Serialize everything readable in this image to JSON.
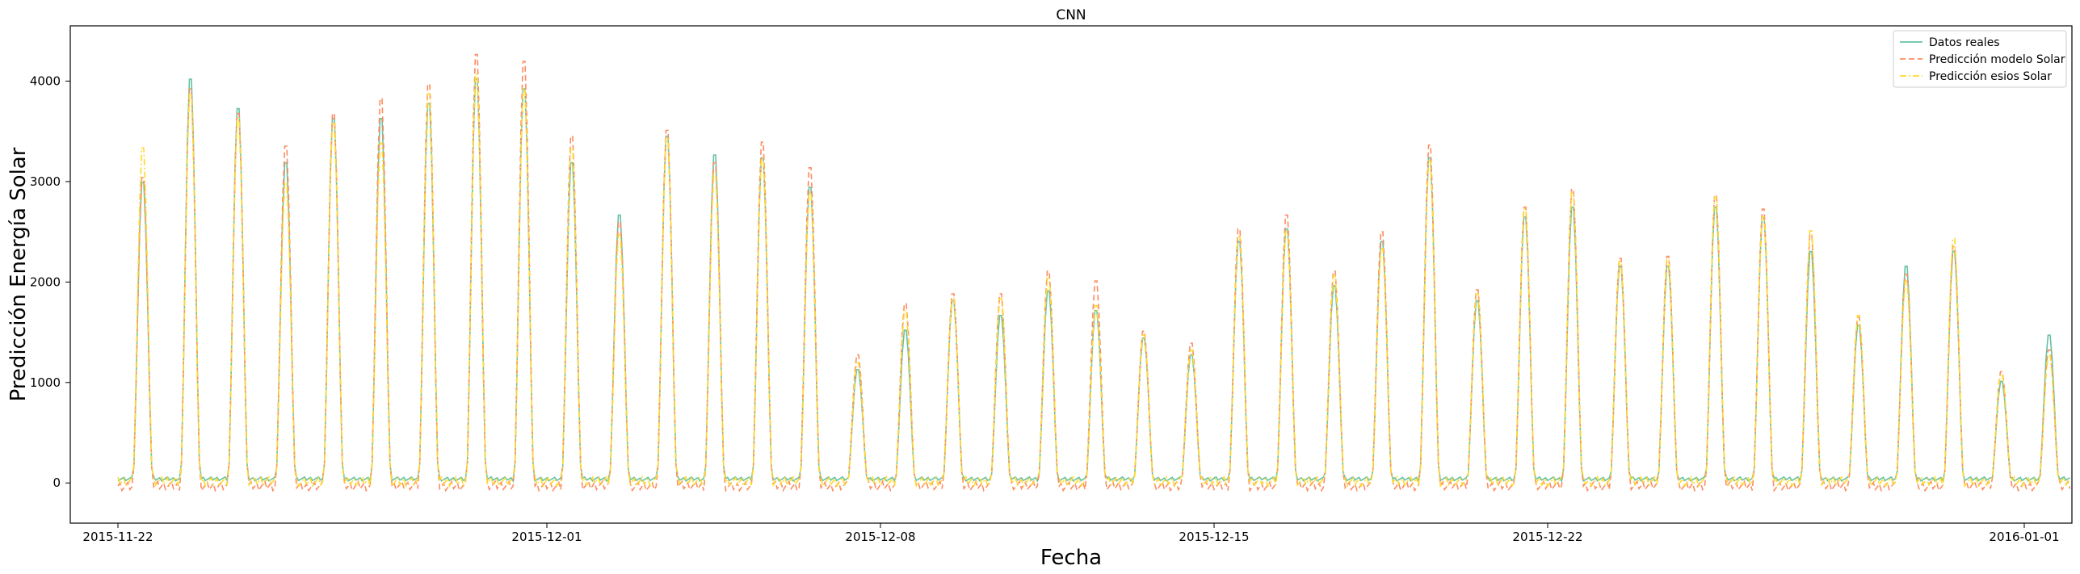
{
  "chart_data": {
    "type": "line",
    "title": "CNN",
    "xlabel": "Fecha",
    "ylabel": "Predicción Energía Solar",
    "x_start": "2015-11-22",
    "x_end": "2016-01-02",
    "xlim": [
      "2015-11-21",
      "2016-01-02"
    ],
    "ylim": [
      -400,
      4550
    ],
    "x_ticks": [
      {
        "date": "2015-11-22",
        "label": "2015-11-22"
      },
      {
        "date": "2015-12-01",
        "label": "2015-12-01"
      },
      {
        "date": "2015-12-08",
        "label": "2015-12-08"
      },
      {
        "date": "2015-12-15",
        "label": "2015-12-15"
      },
      {
        "date": "2015-12-22",
        "label": "2015-12-22"
      },
      {
        "date": "2016-01-01",
        "label": "2016-01-01"
      }
    ],
    "y_ticks": [
      0,
      1000,
      2000,
      3000,
      4000
    ],
    "y_tick_labels": [
      "0",
      "1000",
      "2000",
      "3000",
      "4000"
    ],
    "grid": false,
    "legend_position": "top-right",
    "series": [
      {
        "name": "Datos reales",
        "color": "#66c2a5",
        "style": "solid",
        "values": [
          3050,
          4100,
          3800,
          3250,
          3700,
          3700,
          3850,
          4100,
          4000,
          3250,
          2720,
          3520,
          3330,
          3300,
          3000,
          1150,
          1550,
          1850,
          1700,
          1950,
          1750,
          1470,
          1300,
          2450,
          2580,
          2000,
          2450,
          3300,
          1850,
          2700,
          2800,
          2200,
          2200,
          2800,
          2700,
          2350,
          1600,
          2200,
          2350,
          1030,
          1500
        ]
      },
      {
        "name": "Predicción modelo Solar",
        "color": "#fc8d62",
        "style": "dashed",
        "values": [
          3100,
          4000,
          3750,
          3420,
          3750,
          3900,
          4050,
          4350,
          4280,
          3520,
          2650,
          3580,
          3250,
          3460,
          3200,
          1300,
          1820,
          1920,
          1920,
          2150,
          2050,
          1540,
          1420,
          2580,
          2720,
          2150,
          2550,
          3430,
          1960,
          2800,
          2980,
          2280,
          2300,
          2920,
          2780,
          2520,
          1680,
          2120,
          2400,
          1130,
          1350
        ]
      },
      {
        "name": "Predicción esios Solar",
        "color": "#ffd92f",
        "style": "dashdot",
        "values": [
          3400,
          3950,
          3700,
          3050,
          3650,
          3450,
          3950,
          4150,
          4000,
          3400,
          2520,
          3500,
          3150,
          3300,
          2950,
          1220,
          1750,
          1870,
          1870,
          2080,
          1800,
          1500,
          1350,
          2500,
          2550,
          2100,
          2380,
          3270,
          1920,
          2780,
          2950,
          2250,
          2270,
          2900,
          2700,
          2560,
          1700,
          2050,
          2480,
          1100,
          1300
        ]
      }
    ]
  }
}
